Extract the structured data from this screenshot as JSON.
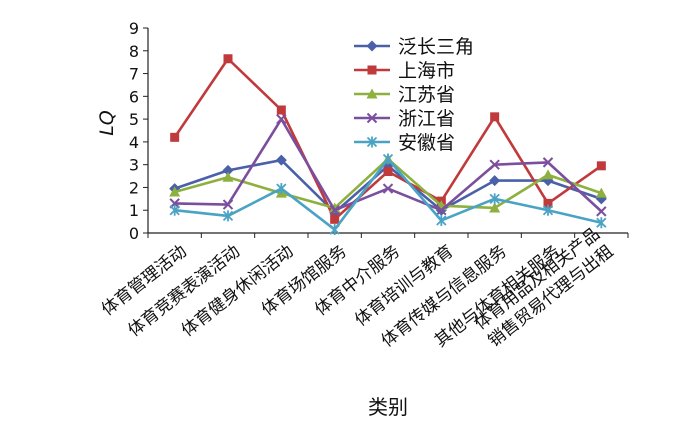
{
  "chart_data": {
    "type": "line",
    "xlabel": "类别",
    "ylabel": "LQ",
    "ylim": [
      0,
      9
    ],
    "yticks": [
      0,
      1,
      2,
      3,
      4,
      5,
      6,
      7,
      8,
      9
    ],
    "grid": false,
    "legend_position": "top-right",
    "categories": [
      "体育管理活动",
      "体育竞赛表演活动",
      "体育健身休闲活动",
      "体育场馆服务",
      "体育中介服务",
      "体育培训与教育",
      "体育传媒与信息服务",
      "其他与体育相关服务",
      [
        "体育用品及相关产品",
        "销售贸易代理与出租"
      ]
    ],
    "series": [
      {
        "name": "泛长三角",
        "color": "#4a60a8",
        "marker": "diamond",
        "values": [
          1.95,
          2.75,
          3.2,
          0.9,
          2.95,
          1.0,
          2.3,
          2.3,
          1.5
        ]
      },
      {
        "name": "上海市",
        "color": "#c0393b",
        "marker": "square",
        "values": [
          4.2,
          7.65,
          5.4,
          0.6,
          2.7,
          1.4,
          5.1,
          1.3,
          2.95
        ]
      },
      {
        "name": "江苏省",
        "color": "#8db03e",
        "marker": "triangle",
        "values": [
          1.8,
          2.45,
          1.75,
          1.1,
          3.25,
          1.2,
          1.1,
          2.55,
          1.75
        ]
      },
      {
        "name": "浙江省",
        "color": "#7b4f9e",
        "marker": "x",
        "values": [
          1.3,
          1.25,
          5.0,
          1.0,
          1.95,
          1.0,
          3.0,
          3.1,
          0.95
        ]
      },
      {
        "name": "安徽省",
        "color": "#4aa3c4",
        "marker": "asterisk",
        "values": [
          1.0,
          0.75,
          1.95,
          0.15,
          3.25,
          0.55,
          1.5,
          1.0,
          0.45
        ]
      }
    ]
  }
}
